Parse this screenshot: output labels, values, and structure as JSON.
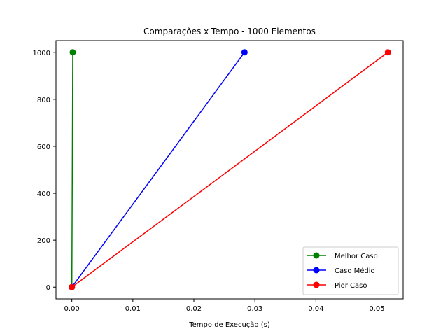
{
  "chart_data": {
    "type": "line",
    "title": "Comparações x Tempo - 1000 Elementos",
    "xlabel": "Tempo de Execução (s)",
    "ylabel": "",
    "xlim": [
      -0.0026,
      0.0543
    ],
    "ylim": [
      -50,
      1050
    ],
    "xticks": [
      "0.00",
      "0.01",
      "0.02",
      "0.03",
      "0.04",
      "0.05"
    ],
    "yticks": [
      "0",
      "200",
      "400",
      "600",
      "800",
      "1000"
    ],
    "legend_position": "lower-right",
    "grid": false,
    "series": [
      {
        "name": "Melhor Caso",
        "color": "#008000",
        "x": [
          0.0,
          0.00015
        ],
        "y": [
          0,
          1000
        ]
      },
      {
        "name": "Caso Médio",
        "color": "#0000ff",
        "x": [
          0.0,
          0.0283
        ],
        "y": [
          0,
          1000
        ]
      },
      {
        "name": "Pior Caso",
        "color": "#ff0000",
        "x": [
          0.0,
          0.0518
        ],
        "y": [
          0,
          1000
        ]
      }
    ]
  }
}
